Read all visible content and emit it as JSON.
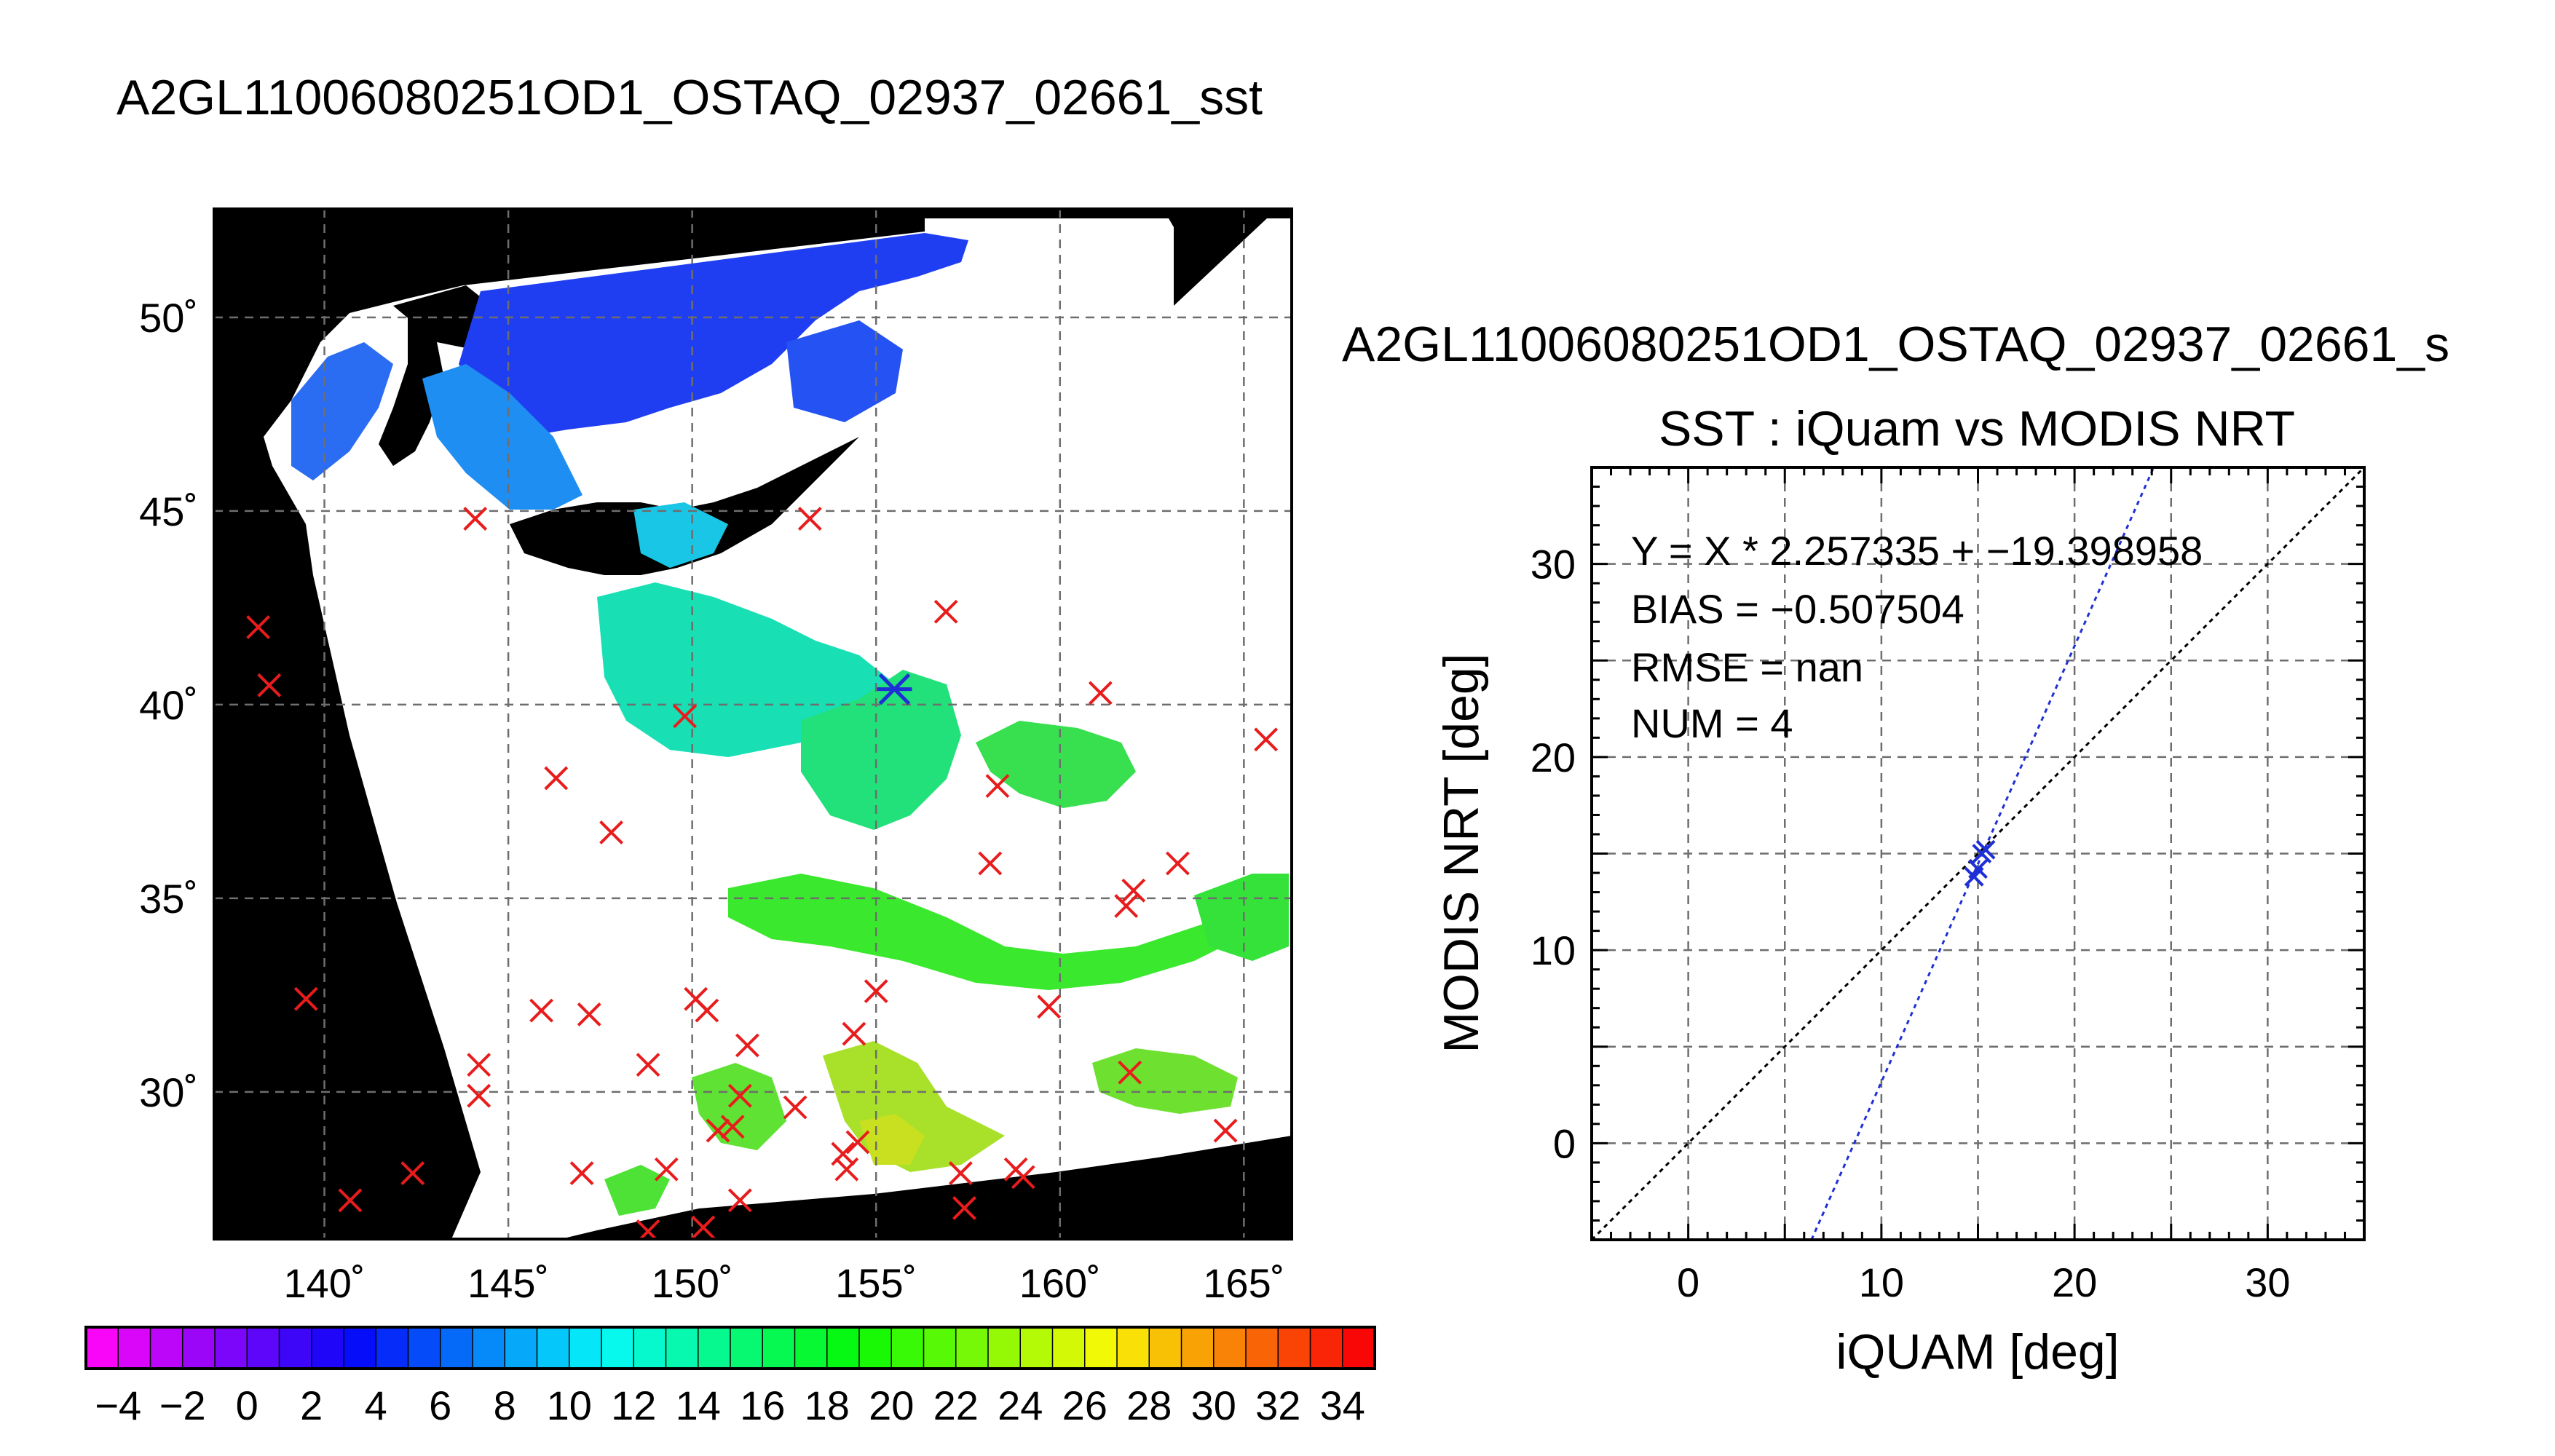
{
  "title": "A2GL11006080251OD1_OSTAQ_02937_02661_sst",
  "colors": {
    "land": "#000000",
    "cloud": "#ffffff",
    "marker": "#e81c1c",
    "fit_line": "#1f2fd6",
    "grid": "#6e6e6e"
  },
  "chart_data": [
    {
      "type": "map",
      "projection": "lat-lon",
      "xlim": [
        137,
        166.3
      ],
      "ylim": [
        26.2,
        52.8
      ],
      "x_ticks": [
        140,
        145,
        150,
        155,
        160,
        165
      ],
      "y_ticks": [
        30,
        35,
        40,
        45,
        50
      ],
      "x_tick_labels": [
        "140˚",
        "145˚",
        "150˚",
        "155˚",
        "160˚",
        "165˚"
      ],
      "y_tick_labels": [
        "30˚",
        "35˚",
        "40˚",
        "45˚",
        "50˚"
      ],
      "grid": true,
      "buoy_markers": [
        [
          138.2,
          42.0
        ],
        [
          138.5,
          40.5
        ],
        [
          139.5,
          32.4
        ],
        [
          144.1,
          44.8
        ],
        [
          146.3,
          38.1
        ],
        [
          147.8,
          36.7
        ],
        [
          145.9,
          32.1
        ],
        [
          147.2,
          32.0
        ],
        [
          144.2,
          30.7
        ],
        [
          144.2,
          29.9
        ],
        [
          142.4,
          27.9
        ],
        [
          140.7,
          27.2
        ],
        [
          147.0,
          27.9
        ],
        [
          148.8,
          30.7
        ],
        [
          149.3,
          28.0
        ],
        [
          148.8,
          26.4
        ],
        [
          150.3,
          26.5
        ],
        [
          150.1,
          32.4
        ],
        [
          150.4,
          32.1
        ],
        [
          151.5,
          31.2
        ],
        [
          151.3,
          29.9
        ],
        [
          150.7,
          29.0
        ],
        [
          151.1,
          29.1
        ],
        [
          151.3,
          27.2
        ],
        [
          152.8,
          29.6
        ],
        [
          153.2,
          44.8
        ],
        [
          149.8,
          39.7
        ],
        [
          154.4,
          31.5
        ],
        [
          155.0,
          32.6
        ],
        [
          156.9,
          42.4
        ],
        [
          158.3,
          37.9
        ],
        [
          158.1,
          35.9
        ],
        [
          159.7,
          32.2
        ],
        [
          161.1,
          40.3
        ],
        [
          162.0,
          35.2
        ],
        [
          161.8,
          34.8
        ],
        [
          161.9,
          30.5
        ],
        [
          163.2,
          35.9
        ],
        [
          165.6,
          39.1
        ],
        [
          164.5,
          29.0
        ],
        [
          154.2,
          28.0
        ],
        [
          154.5,
          28.7
        ],
        [
          154.1,
          28.4
        ],
        [
          157.4,
          27.0
        ],
        [
          157.3,
          27.9
        ],
        [
          158.8,
          28.0
        ],
        [
          159.0,
          27.8
        ]
      ],
      "match_marker": [
        155.5,
        40.4
      ]
    },
    {
      "type": "scatter",
      "title": "SST : iQuam vs MODIS NRT",
      "subtitle": "A2GL11006080251OD1_OSTAQ_02937_02661_s",
      "xlabel": "iQUAM [deg]",
      "ylabel": "MODIS NRT [deg]",
      "xlim": [
        -5,
        35
      ],
      "ylim": [
        -5,
        35
      ],
      "x_ticks": [
        0,
        10,
        20,
        30
      ],
      "y_ticks": [
        0,
        10,
        20,
        30
      ],
      "grid": true,
      "annotations": [
        "Y = X * 2.257335 + −19.398958",
        "BIAS = −0.507504",
        "RMSE = nan",
        "NUM = 4"
      ],
      "fit": {
        "slope": 2.257335,
        "intercept": -19.398958
      },
      "points": [
        [
          14.8,
          13.8
        ],
        [
          15.0,
          14.2
        ],
        [
          15.2,
          15.0
        ],
        [
          15.4,
          15.2
        ]
      ]
    },
    {
      "type": "colorbar",
      "range": [
        -5,
        35
      ],
      "step": 1,
      "tick_labels": [
        "−4",
        "−2",
        "0",
        "2",
        "4",
        "6",
        "8",
        "10",
        "12",
        "14",
        "16",
        "18",
        "20",
        "22",
        "24",
        "26",
        "28",
        "30",
        "32",
        "34"
      ]
    }
  ]
}
